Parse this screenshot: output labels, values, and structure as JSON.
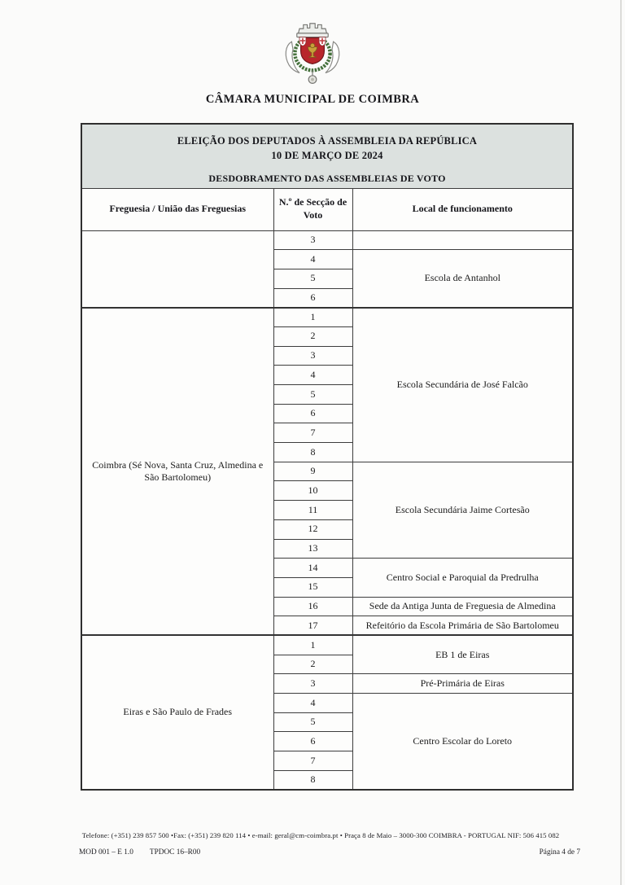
{
  "page": {
    "title": "CÂMARA MUNICIPAL DE COIMBRA"
  },
  "logo": {
    "icon": "coimbra-coat-of-arms-icon",
    "shield_color": "#b8262c",
    "wreath_color": "#45713c",
    "crown_color": "#9a9a96"
  },
  "table": {
    "band": {
      "line1": "ELEIÇÃO DOS DEPUTADOS À ASSEMBLEIA DA REPÚBLICA",
      "line2": "10 DE MARÇO DE 2024",
      "line3": "DESDOBRAMENTO DAS ASSEMBLEIAS DE VOTO"
    },
    "columns": [
      "Freguesia / União das Freguesias",
      "N.º de Secção de Voto",
      "Local de funcionamento"
    ],
    "blocks": [
      {
        "freguesia": "",
        "rows": [
          {
            "n": "3",
            "local": {
              "text": "",
              "span": 1
            }
          },
          {
            "n": "4",
            "local": {
              "text": "Escola de Antanhol",
              "span": 3
            }
          },
          {
            "n": "5"
          },
          {
            "n": "6"
          }
        ]
      },
      {
        "freguesia": "Coimbra (Sé Nova, Santa Cruz, Almedina e São Bartolomeu)",
        "rows": [
          {
            "n": "1",
            "local": {
              "text": "Escola Secundária de José Falcão",
              "span": 8
            }
          },
          {
            "n": "2"
          },
          {
            "n": "3"
          },
          {
            "n": "4"
          },
          {
            "n": "5"
          },
          {
            "n": "6"
          },
          {
            "n": "7"
          },
          {
            "n": "8"
          },
          {
            "n": "9",
            "local": {
              "text": "Escola Secundária Jaime Cortesão",
              "span": 5
            }
          },
          {
            "n": "10"
          },
          {
            "n": "11"
          },
          {
            "n": "12"
          },
          {
            "n": "13"
          },
          {
            "n": "14",
            "local": {
              "text": "Centro Social e Paroquial da Predrulha",
              "span": 2
            }
          },
          {
            "n": "15"
          },
          {
            "n": "16",
            "local": {
              "text": "Sede da Antiga Junta de Freguesia de Almedina",
              "span": 1
            }
          },
          {
            "n": "17",
            "local": {
              "text": "Refeitório da Escola Primária de São Bartolomeu",
              "span": 1
            }
          }
        ]
      },
      {
        "freguesia": "Eiras e São Paulo de Frades",
        "rows": [
          {
            "n": "1",
            "local": {
              "text": "EB 1 de Eiras",
              "span": 2
            }
          },
          {
            "n": "2"
          },
          {
            "n": "3",
            "local": {
              "text": "Pré-Primária de Eiras",
              "span": 1
            }
          },
          {
            "n": "4",
            "local": {
              "text": "Centro Escolar do Loreto",
              "span": 5
            }
          },
          {
            "n": "5"
          },
          {
            "n": "6"
          },
          {
            "n": "7"
          },
          {
            "n": "8"
          }
        ]
      }
    ]
  },
  "footer": {
    "contact": "Telefone: (+351) 239 857 500 •Fax: (+351) 239 820 114 • e-mail: geral@cm-coimbra.pt • Praça 8 de Maio – 3000-300 COIMBRA - PORTUGAL NIF: 506 415 082",
    "mod": "MOD 001 – E 1.0",
    "tpdoc": "TPDOC 16–R00",
    "page_number": "Página 4 de 7"
  }
}
